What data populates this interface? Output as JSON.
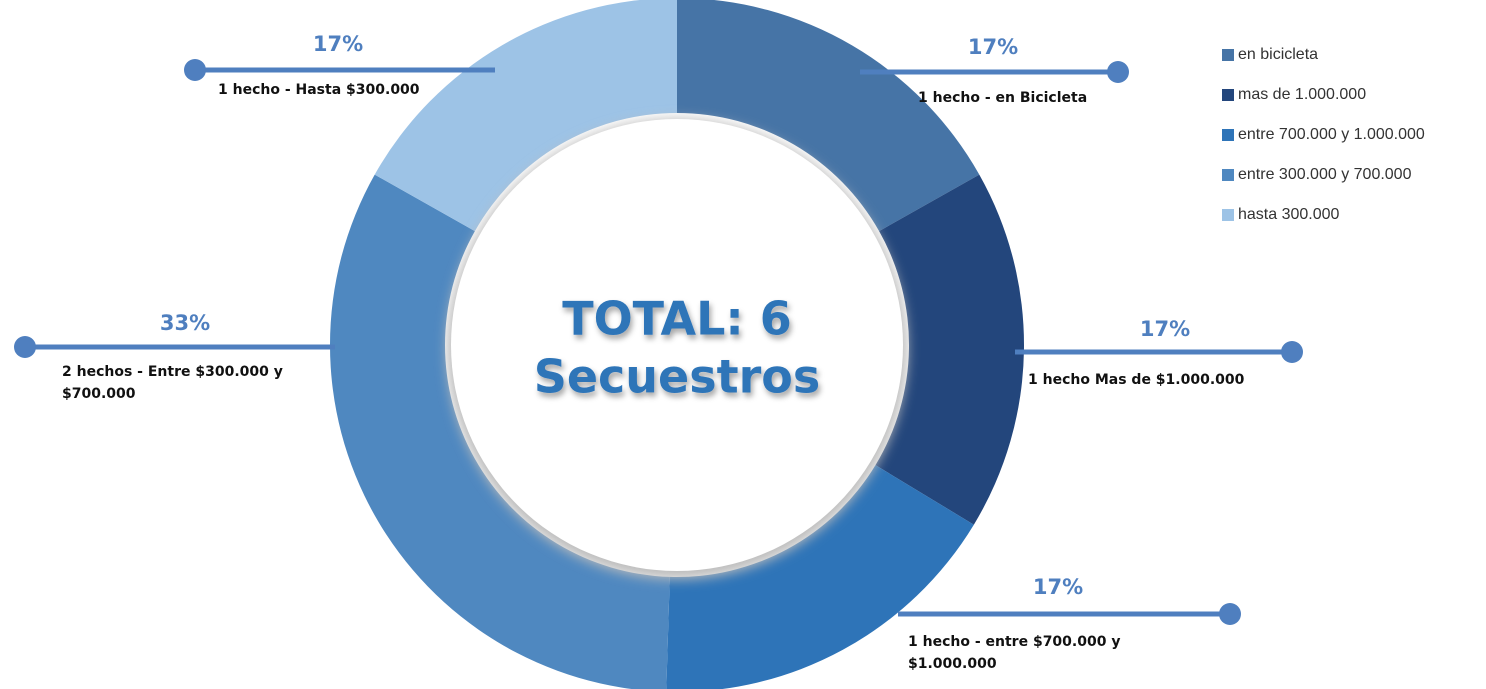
{
  "chart_data": {
    "type": "donut",
    "center_text": [
      "TOTAL: 6",
      "Secuestros"
    ],
    "categories": [
      "en bicicleta",
      "mas de 1.000.000",
      "entre 700.000 y 1.000.000",
      "entre 300.000 y 700.000",
      "hasta 300.000"
    ],
    "values": [
      17,
      17,
      17,
      33,
      17
    ],
    "value_labels": [
      "17%",
      "17%",
      "17%",
      "33%",
      "17%"
    ],
    "colors": [
      "#4674a6",
      "#23467c",
      "#2e74b8",
      "#4f88c0",
      "#9dc3e6"
    ],
    "annotations": [
      [
        "1 hecho - en Bicicleta"
      ],
      [
        "1 hecho Mas de $1.000.000"
      ],
      [
        "1 hecho -  entre $700.000 y",
        "$1.000.000"
      ],
      [
        "2 hechos - Entre $300.000 y",
        "$700.000"
      ],
      [
        "1 hecho - Hasta $300.000"
      ]
    ],
    "legend": "top-right"
  }
}
